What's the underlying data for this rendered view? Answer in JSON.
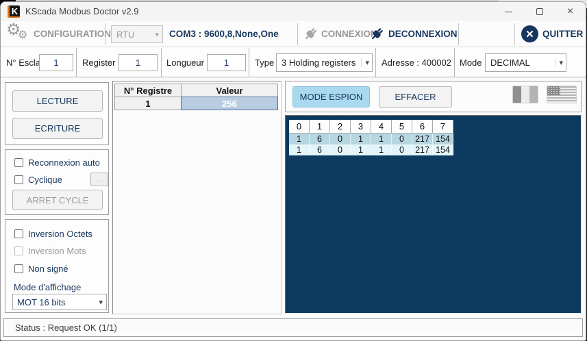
{
  "colors": {
    "navy": "#17365d",
    "gray_text": "#9a9a9a",
    "panel_dark": "#0d3a5f",
    "espion_blue": "#a9d9ee",
    "row_blue": "#b6d7e1",
    "row_pale": "#e4f5fa",
    "value_cell_blue": "#b9cde2",
    "logo_orange": "#e8780f"
  },
  "window": {
    "title": "KScada Modbus Doctor v2.9",
    "logo_letter": "K"
  },
  "toolbar": {
    "configuration_label": "CONFIGURATION",
    "protocol_value": "RTU",
    "com_settings": "COM3 : 9600,8,None,One",
    "connexion_label": "CONNEXION",
    "deconnexion_label": "DECONNEXION",
    "quitter_label": "QUITTER"
  },
  "params": {
    "esclave_label": "N° Esclave",
    "esclave_value": "1",
    "register_label": "Register",
    "register_value": "1",
    "longueur_label": "Longueur",
    "longueur_value": "1",
    "type_label": "Type",
    "type_value": "3 Holding registers",
    "adresse_label": "Adresse : 400002",
    "mode_label": "Mode",
    "mode_value": "DECIMAL"
  },
  "left_panel": {
    "lecture_label": "LECTURE",
    "ecriture_label": "ECRITURE",
    "reconnexion_label": "Reconnexion auto",
    "cyclique_label": "Cyclique",
    "cyclique_more_label": "...",
    "arret_cycle_label": "ARRET CYCLE",
    "inversion_octets_label": "Inversion Octets",
    "inversion_mots_label": "Inversion Mots",
    "non_signe_label": "Non signé",
    "affichage_label": "Mode d'affichage",
    "affichage_value": "MOT 16 bits"
  },
  "register_table": {
    "headers": [
      "N° Registre",
      "Valeur"
    ],
    "rows": [
      {
        "registre": "1",
        "valeur": "256"
      }
    ]
  },
  "spy_panel": {
    "mode_espion_label": "MODE ESPION",
    "effacer_label": "EFFACER",
    "grid": {
      "headers": [
        "0",
        "1",
        "2",
        "3",
        "4",
        "5",
        "6",
        "7"
      ],
      "rows": [
        [
          "1",
          "6",
          "0",
          "1",
          "1",
          "0",
          "217",
          "154"
        ],
        [
          "1",
          "6",
          "0",
          "1",
          "1",
          "0",
          "217",
          "154"
        ]
      ]
    }
  },
  "status_bar": {
    "text": "Status : Request OK (1/1)"
  }
}
